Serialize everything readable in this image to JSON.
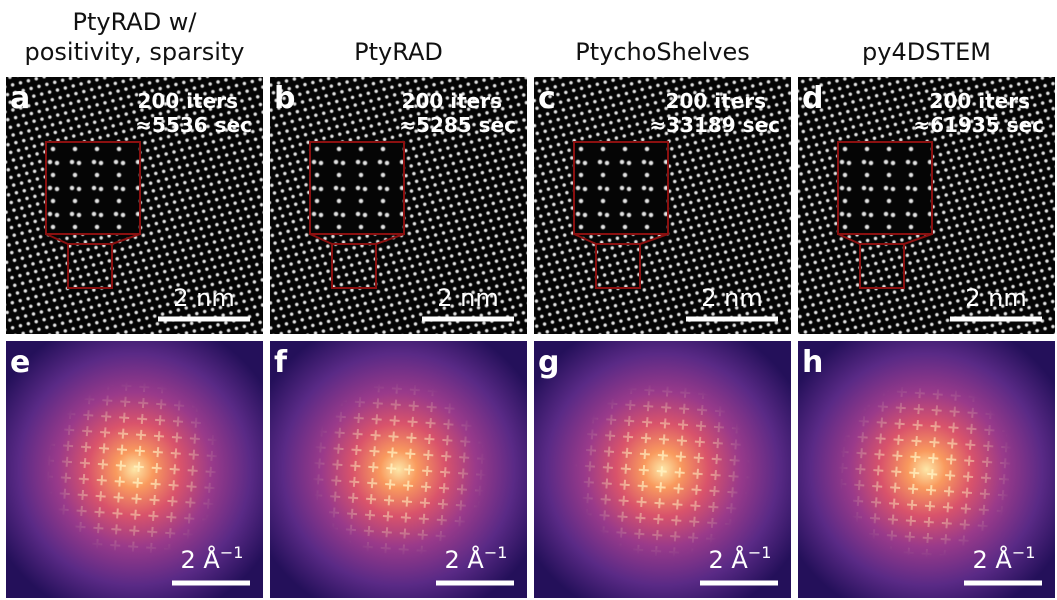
{
  "columns": [
    {
      "title": [
        "PtyRAD w/",
        "positivity, sparsity"
      ],
      "top_label": "a",
      "iterations": "200 iters",
      "time": "≈5536 sec",
      "real_scale": "2 nm",
      "bottom_label": "e",
      "reciprocal_scale": "2 Å",
      "reciprocal_exponent": "−1"
    },
    {
      "title": [
        "PtyRAD"
      ],
      "top_label": "b",
      "iterations": "200 iters",
      "time": "≈5285 sec",
      "real_scale": "2 nm",
      "bottom_label": "f",
      "reciprocal_scale": "2 Å",
      "reciprocal_exponent": "−1"
    },
    {
      "title": [
        "PtychoShelves"
      ],
      "top_label": "c",
      "iterations": "200 iters",
      "time": "≈33189 sec",
      "real_scale": "2 nm",
      "bottom_label": "g",
      "reciprocal_scale": "2 Å",
      "reciprocal_exponent": "−1"
    },
    {
      "title": [
        "py4DSTEM"
      ],
      "top_label": "d",
      "iterations": "200 iters",
      "time": "≈61935 sec",
      "real_scale": "2 nm",
      "bottom_label": "h",
      "reciprocal_scale": "2 Å",
      "reciprocal_exponent": "−1"
    }
  ]
}
